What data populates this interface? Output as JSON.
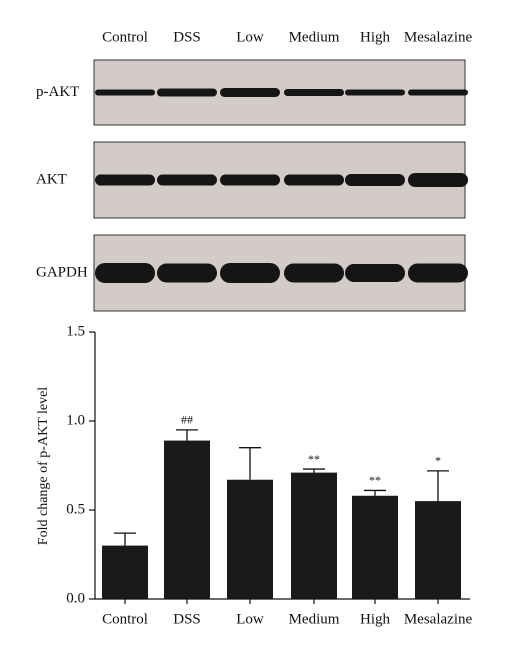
{
  "blot": {
    "lanes": [
      "Control",
      "DSS",
      "Low",
      "Medium",
      "High",
      "Mesalazine"
    ],
    "rows": [
      "p-AKT",
      "AKT",
      "GAPDH"
    ]
  },
  "chart_data": {
    "type": "bar",
    "y_label": "Fold change of p-AKT level",
    "categories": [
      "Control",
      "DSS",
      "Low",
      "Medium",
      "High",
      "Mesalazine"
    ],
    "values": [
      0.3,
      0.89,
      0.67,
      0.71,
      0.58,
      0.55
    ],
    "errors": [
      0.07,
      0.06,
      0.18,
      0.02,
      0.03,
      0.17
    ],
    "annotations": [
      null,
      "##",
      null,
      "**",
      "**",
      "*"
    ],
    "color": "#1a1a1a",
    "ylim": [
      0,
      1.5
    ],
    "yticks": [
      {
        "value": 0,
        "label": "0.0"
      },
      0.5,
      {
        "value": 1,
        "label": "1.0"
      },
      1.5
    ]
  }
}
